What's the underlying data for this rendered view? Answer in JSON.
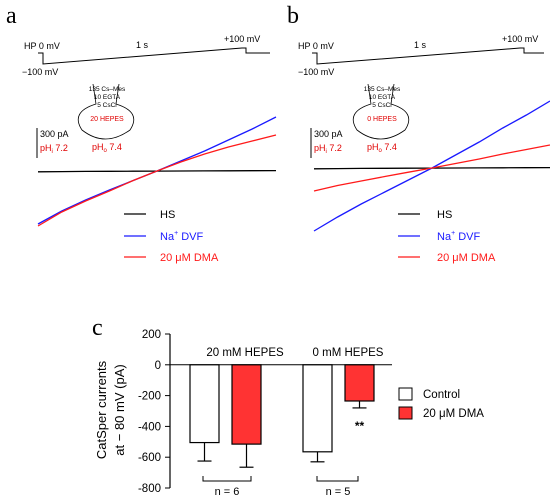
{
  "panels": {
    "a": {
      "letter": "a",
      "protocol": {
        "hp": "HP 0 mV",
        "duration": "1 s",
        "start": "−100 mV",
        "end": "+100 mV"
      },
      "pipette": {
        "line1": "135 Cs–Mes",
        "line2": "10 EGTA",
        "line3": "5 CsCl",
        "buffer": "20 HEPES"
      },
      "scale_current": "300 pA",
      "phi": {
        "text": "pH",
        "sub": "i",
        "val": " 7.2"
      },
      "pho": {
        "text": "pH",
        "sub": "o",
        "val": " 7.4"
      }
    },
    "b": {
      "letter": "b",
      "protocol": {
        "hp": "HP 0 mV",
        "duration": "1 s",
        "start": "−100 mV",
        "end": "+100 mV"
      },
      "pipette": {
        "line1": "135 Cs–Mes",
        "line2": "10 EGTA",
        "line3": "5 CsCl",
        "buffer": "0 HEPES"
      },
      "scale_current": "300 pA",
      "phi": {
        "text": "pH",
        "sub": "i",
        "val": " 7.2"
      },
      "pho": {
        "text": "pH",
        "sub": "o",
        "val": " 7.4"
      }
    },
    "c": {
      "letter": "c"
    }
  },
  "legend_ab": [
    {
      "label_main": "HS",
      "sup": "",
      "rest": "",
      "color": "#000000"
    },
    {
      "label_main": "Na",
      "sup": "+",
      "rest": " DVF",
      "color": "#1a1aff"
    },
    {
      "label_main": "20 μM DMA",
      "sup": "",
      "rest": "",
      "color": "#ff1a1a"
    }
  ],
  "chart_data": [
    {
      "type": "line",
      "panel": "a",
      "xlabel": "",
      "ylabel": "",
      "x_unit": "mV",
      "series": [
        {
          "color": "#000000",
          "x": [
            -100,
            -80,
            -60,
            -40,
            -20,
            0,
            20,
            40,
            60,
            80,
            100
          ],
          "y": [
            -8,
            -6,
            -4,
            -3,
            -2,
            -1,
            0,
            1,
            2,
            3,
            4
          ]
        },
        {
          "color": "#1a1aff",
          "x": [
            -100,
            -80,
            -60,
            -40,
            -20,
            0,
            20,
            40,
            60,
            80,
            100
          ],
          "y": [
            -530,
            -400,
            -290,
            -190,
            -95,
            0,
            100,
            200,
            310,
            420,
            540
          ]
        },
        {
          "color": "#ff1a1a",
          "x": [
            -100,
            -80,
            -60,
            -40,
            -20,
            0,
            20,
            40,
            60,
            80,
            100
          ],
          "y": [
            -550,
            -410,
            -300,
            -200,
            -95,
            0,
            90,
            170,
            240,
            300,
            360
          ]
        }
      ]
    },
    {
      "type": "line",
      "panel": "b",
      "xlabel": "",
      "ylabel": "",
      "x_unit": "mV",
      "series": [
        {
          "color": "#000000",
          "x": [
            -100,
            -80,
            -60,
            -40,
            -20,
            0,
            20,
            40,
            60,
            80,
            100
          ],
          "y": [
            -8,
            -6,
            -4,
            -3,
            -2,
            -1,
            0,
            1,
            2,
            3,
            4
          ]
        },
        {
          "color": "#1a1aff",
          "x": [
            -100,
            -80,
            -60,
            -40,
            -20,
            0,
            20,
            40,
            60,
            80,
            100
          ],
          "y": [
            -630,
            -490,
            -360,
            -240,
            -120,
            0,
            130,
            260,
            400,
            530,
            670
          ]
        },
        {
          "color": "#ff1a1a",
          "x": [
            -100,
            -80,
            -60,
            -40,
            -20,
            0,
            20,
            40,
            60,
            80,
            100
          ],
          "y": [
            -230,
            -175,
            -130,
            -85,
            -42,
            0,
            45,
            90,
            140,
            185,
            230
          ]
        }
      ]
    },
    {
      "type": "bar",
      "panel": "c",
      "ylabel_line1": "CatSper currents",
      "ylabel_line2": "at − 80 mV (pA)",
      "ylim": [
        -800,
        200
      ],
      "yticks": [
        "200",
        "0",
        "-200",
        "-400",
        "-600",
        "-800"
      ],
      "ytick_values": [
        200,
        0,
        -200,
        -400,
        -600,
        -800
      ],
      "groups": [
        {
          "label": "20 mM HEPES",
          "n_label": "n = 6",
          "control": -505,
          "control_err": 120,
          "dma": -515,
          "dma_err": 150,
          "significance": ""
        },
        {
          "label": "0 mM HEPES",
          "n_label": "n = 5",
          "control": -565,
          "control_err": 65,
          "dma": -235,
          "dma_err": 45,
          "significance": "**"
        }
      ],
      "legend": [
        {
          "label": "Control",
          "color": "#ffffff"
        },
        {
          "label": "20 μM DMA",
          "color": "#ff3333"
        }
      ]
    }
  ]
}
